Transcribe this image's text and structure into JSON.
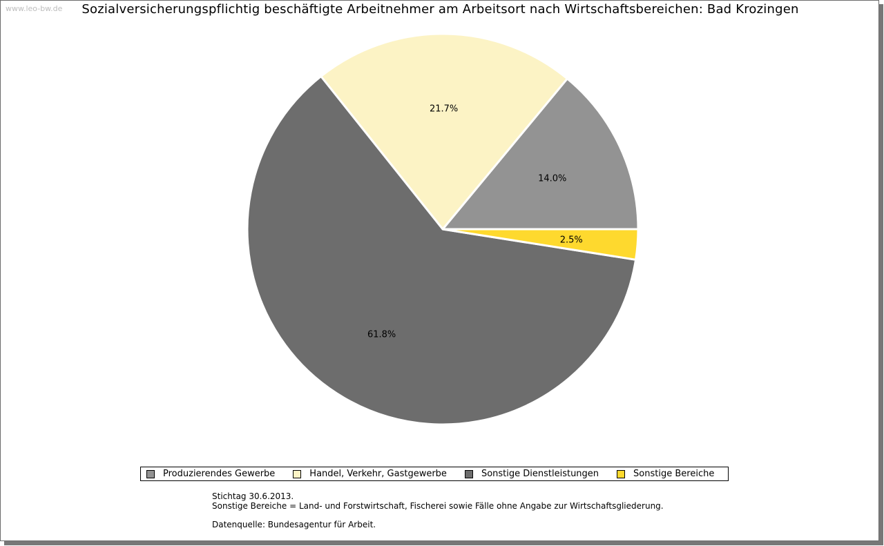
{
  "watermark": "www.leo-bw.de",
  "chart_data": {
    "type": "pie",
    "title": "Sozialversicherungspflichtig beschäftigte Arbeitnehmer am Arbeitsort nach Wirtschaftsbereichen: Bad Krozingen",
    "slices": [
      {
        "name": "Produzierendes Gewerbe",
        "value": 14.0,
        "label": "14.0%",
        "color": "#939393"
      },
      {
        "name": "Handel, Verkehr, Gastgewerbe",
        "value": 21.7,
        "label": "21.7%",
        "color": "#fcf3c5"
      },
      {
        "name": "Sonstige Dienstleistungen",
        "value": 61.8,
        "label": "61.8%",
        "color": "#6d6d6d"
      },
      {
        "name": "Sonstige Bereiche",
        "value": 2.5,
        "label": "2.5%",
        "color": "#fed92e"
      }
    ],
    "legend_position": "bottom"
  },
  "legend": [
    {
      "label": "Produzierendes Gewerbe",
      "color": "#939393"
    },
    {
      "label": "Handel, Verkehr, Gastgewerbe",
      "color": "#fcf3c5"
    },
    {
      "label": "Sonstige Dienstleistungen",
      "color": "#6d6d6d"
    },
    {
      "label": "Sonstige Bereiche",
      "color": "#fed92e"
    }
  ],
  "notes": {
    "line1": "Stichtag 30.6.2013.",
    "line2": "Sonstige Bereiche = Land- und Forstwirtschaft, Fischerei sowie Fälle ohne Angabe zur Wirtschaftsgliederung.",
    "line3": "Datenquelle: Bundesagentur für Arbeit."
  }
}
